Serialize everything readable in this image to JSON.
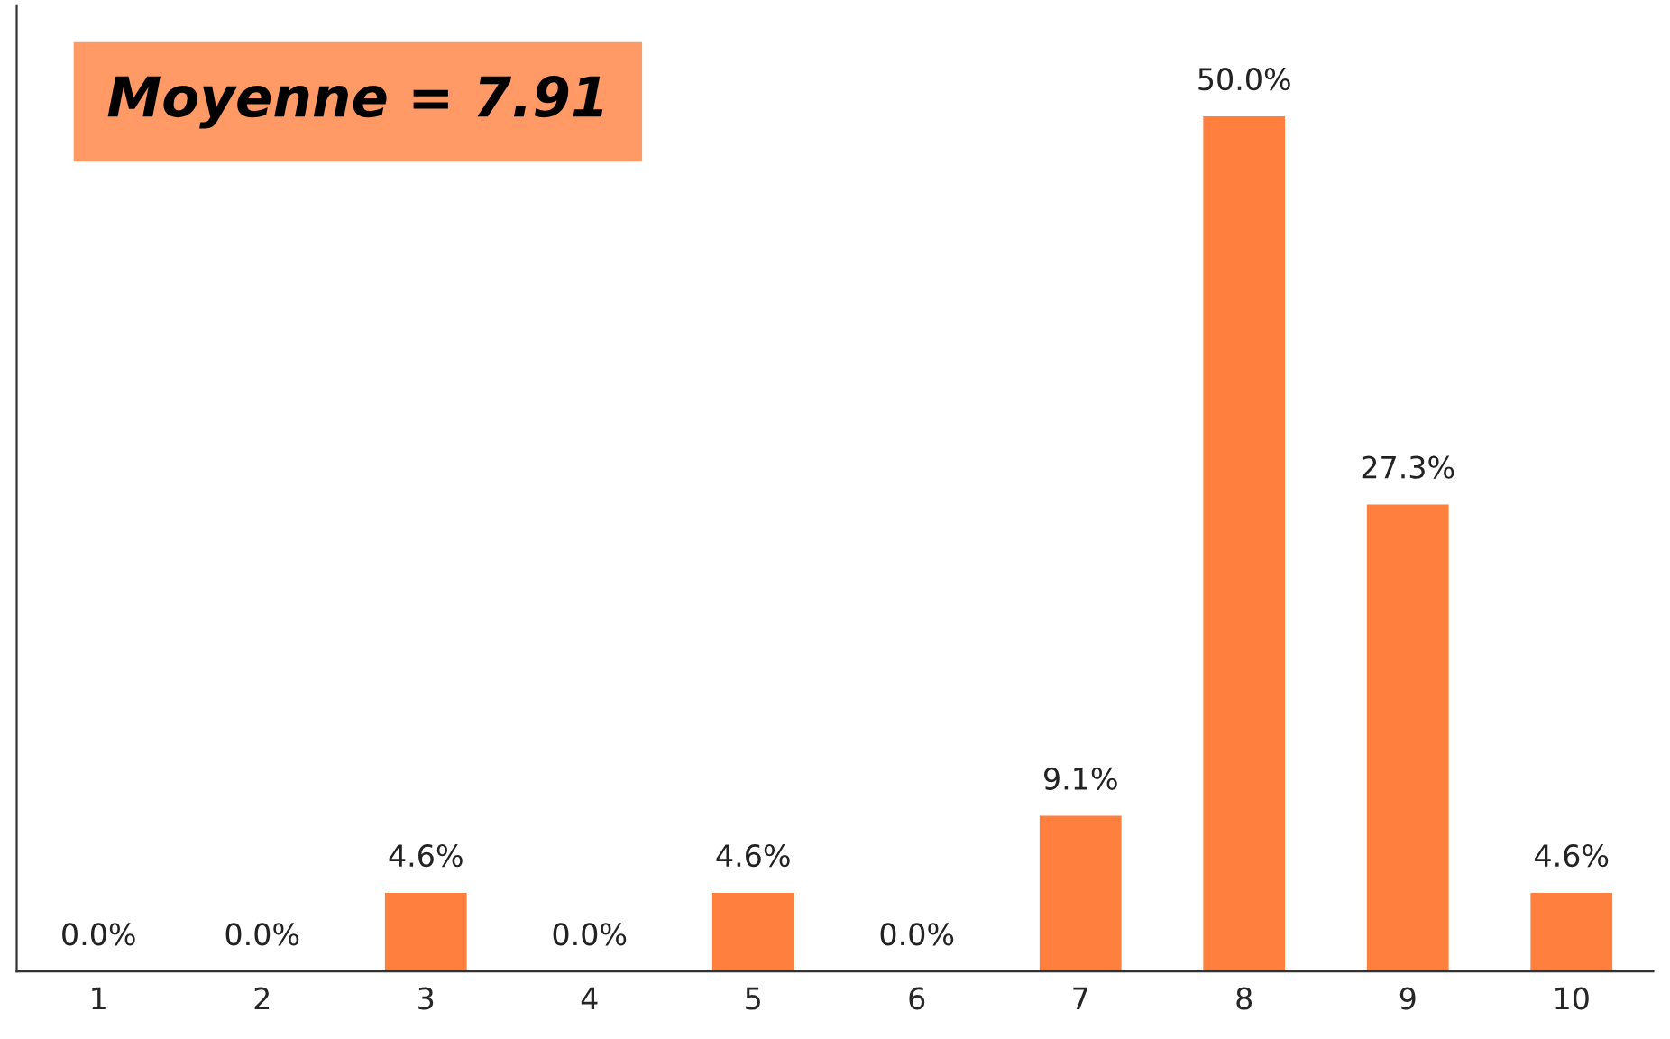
{
  "chart_data": {
    "type": "bar",
    "categories": [
      "1",
      "2",
      "3",
      "4",
      "5",
      "6",
      "7",
      "8",
      "9",
      "10"
    ],
    "values": [
      0.0,
      0.0,
      4.6,
      0.0,
      4.6,
      0.0,
      9.1,
      50.0,
      27.3,
      4.6
    ],
    "value_labels": [
      "0.0%",
      "0.0%",
      "4.6%",
      "0.0%",
      "4.6%",
      "0.0%",
      "9.1%",
      "50.0%",
      "27.3%",
      "4.6%"
    ],
    "color": "#ff7f3f",
    "annotations": [
      "Moyenne = 7.91"
    ],
    "grid": false,
    "legend": false
  }
}
